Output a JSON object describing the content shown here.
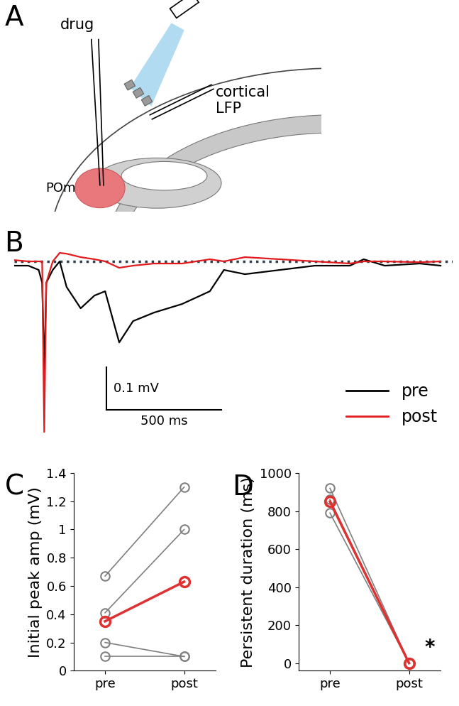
{
  "diagram": {
    "panel": "A",
    "labels": {
      "drug": "drug",
      "electrode": "cortical\nLFP",
      "region": "POm"
    }
  },
  "chart_data": [
    {
      "panel": "B",
      "type": "line",
      "x": [
        0,
        61,
        106,
        121,
        130,
        139,
        167,
        197,
        227,
        288,
        348,
        394,
        455,
        515,
        606,
        727,
        848,
        909,
        1000,
        1152,
        1303,
        1455,
        1515,
        1606,
        1758,
        1848
      ],
      "series": [
        {
          "name": "pre",
          "color": "#000000",
          "values": [
            -0.01,
            -0.01,
            -0.02,
            -0.05,
            -0.255,
            -0.05,
            -0.02,
            0.0,
            -0.06,
            -0.11,
            -0.08,
            -0.07,
            -0.19,
            -0.14,
            -0.12,
            -0.1,
            -0.07,
            -0.02,
            -0.03,
            -0.02,
            -0.01,
            -0.01,
            0.005,
            -0.01,
            -0.005,
            -0.01
          ]
        },
        {
          "name": "post",
          "color": "#e31a1c",
          "values": [
            0.003,
            0.0,
            0.0,
            0.0,
            -0.4,
            -0.05,
            0.0,
            0.02,
            0.018,
            0.01,
            0.005,
            0.0,
            -0.015,
            -0.01,
            -0.005,
            -0.005,
            0.005,
            0.0,
            0.01,
            0.005,
            0.0,
            -0.005,
            0.0,
            0.0,
            -0.002,
            0.0
          ]
        }
      ],
      "xlim": [
        0,
        1900
      ],
      "ylim": [
        -0.42,
        0.06
      ],
      "tick_labels": false,
      "legend": "lower right",
      "baseline": 0,
      "scale_bar": {
        "x": 500,
        "x_label": "500 ms",
        "y": 0.1,
        "y_label": "0.1 mV"
      }
    },
    {
      "panel": "C",
      "type": "line",
      "categories": [
        "pre",
        "post"
      ],
      "marker": "o",
      "y_label": "Initial peak amp (mV)",
      "series": [
        {
          "color": "#808080",
          "values": [
            0.67,
            1.3
          ]
        },
        {
          "color": "#808080",
          "values": [
            0.41,
            1.0
          ]
        },
        {
          "color": "#808080",
          "values": [
            0.2,
            0.1
          ]
        },
        {
          "color": "#808080",
          "values": [
            0.1,
            0.1
          ]
        },
        {
          "color": "#e0302f",
          "values": [
            0.35,
            0.63
          ]
        }
      ],
      "ylim": [
        0,
        1.4
      ],
      "yticks": [
        0,
        0.2,
        0.4,
        0.6,
        0.8,
        1,
        1.2,
        1.4
      ]
    },
    {
      "panel": "D",
      "type": "line",
      "categories": [
        "pre",
        "post"
      ],
      "marker": "o",
      "y_label": "Persistent duration (ms)",
      "series": [
        {
          "color": "#808080",
          "values": [
            920,
            0
          ]
        },
        {
          "color": "#808080",
          "values": [
            860,
            0
          ]
        },
        {
          "color": "#808080",
          "values": [
            790,
            0
          ]
        },
        {
          "color": "#e0302f",
          "values": [
            850,
            0
          ]
        }
      ],
      "ylim": [
        -40,
        1000
      ],
      "yticks": [
        0,
        200,
        400,
        600,
        800,
        1000
      ],
      "annotations": [
        {
          "text": "*"
        }
      ]
    }
  ]
}
